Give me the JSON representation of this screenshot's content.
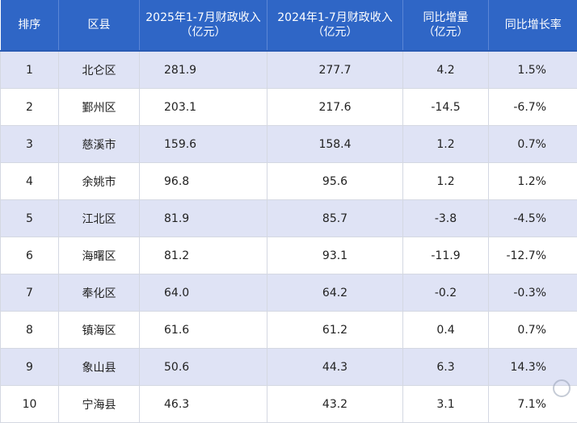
{
  "table": {
    "headers": [
      "排序",
      "区县",
      "2025年1-7月财政收入\n（亿元）",
      "2024年1-7月财政收入\n（亿元）",
      "同比增量\n（亿元）",
      "同比增长率"
    ],
    "rows": [
      {
        "rank": "1",
        "district": "北仑区",
        "r2025": "281.9",
        "r2024": "277.7",
        "yoy": "4.2",
        "rate": "1.5%"
      },
      {
        "rank": "2",
        "district": "鄞州区",
        "r2025": "203.1",
        "r2024": "217.6",
        "yoy": "-14.5",
        "rate": "-6.7%"
      },
      {
        "rank": "3",
        "district": "慈溪市",
        "r2025": "159.6",
        "r2024": "158.4",
        "yoy": "1.2",
        "rate": "0.7%"
      },
      {
        "rank": "4",
        "district": "余姚市",
        "r2025": "96.8",
        "r2024": "95.6",
        "yoy": "1.2",
        "rate": "1.2%"
      },
      {
        "rank": "5",
        "district": "江北区",
        "r2025": "81.9",
        "r2024": "85.7",
        "yoy": "-3.8",
        "rate": "-4.5%"
      },
      {
        "rank": "6",
        "district": "海曙区",
        "r2025": "81.2",
        "r2024": "93.1",
        "yoy": "-11.9",
        "rate": "-12.7%"
      },
      {
        "rank": "7",
        "district": "奉化区",
        "r2025": "64.0",
        "r2024": "64.2",
        "yoy": "-0.2",
        "rate": "-0.3%"
      },
      {
        "rank": "8",
        "district": "镇海区",
        "r2025": "61.6",
        "r2024": "61.2",
        "yoy": "0.4",
        "rate": "0.7%"
      },
      {
        "rank": "9",
        "district": "象山县",
        "r2025": "50.6",
        "r2024": "44.3",
        "yoy": "6.3",
        "rate": "14.3%"
      },
      {
        "rank": "10",
        "district": "宁海县",
        "r2025": "46.3",
        "r2024": "43.2",
        "yoy": "3.1",
        "rate": "7.1%"
      }
    ]
  },
  "colors": {
    "header_bg": "#2f66c6",
    "row_stripe": "#dfe3f5"
  },
  "watermark": {
    "icon": "site-logo-icon"
  }
}
